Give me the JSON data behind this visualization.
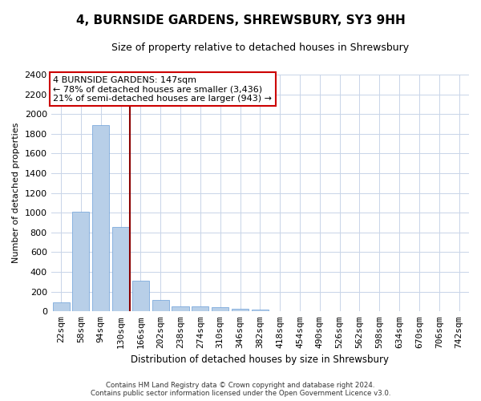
{
  "title": "4, BURNSIDE GARDENS, SHREWSBURY, SY3 9HH",
  "subtitle": "Size of property relative to detached houses in Shrewsbury",
  "xlabel": "Distribution of detached houses by size in Shrewsbury",
  "ylabel": "Number of detached properties",
  "footer_line1": "Contains HM Land Registry data © Crown copyright and database right 2024.",
  "footer_line2": "Contains public sector information licensed under the Open Government Licence v3.0.",
  "annotation_line1": "4 BURNSIDE GARDENS: 147sqm",
  "annotation_line2": "← 78% of detached houses are smaller (3,436)",
  "annotation_line3": "21% of semi-detached houses are larger (943) →",
  "property_size": 147,
  "bar_color": "#b8cfe8",
  "bar_edge_color": "#6a9fd8",
  "vline_color": "#8b0000",
  "categories": [
    "22sqm",
    "58sqm",
    "94sqm",
    "130sqm",
    "166sqm",
    "202sqm",
    "238sqm",
    "274sqm",
    "310sqm",
    "346sqm",
    "382sqm",
    "418sqm",
    "454sqm",
    "490sqm",
    "526sqm",
    "562sqm",
    "598sqm",
    "634sqm",
    "670sqm",
    "706sqm",
    "742sqm"
  ],
  "bar_heights": [
    90,
    1010,
    1890,
    860,
    310,
    115,
    55,
    50,
    40,
    25,
    20,
    0,
    0,
    0,
    0,
    0,
    0,
    0,
    0,
    0,
    0
  ],
  "ylim": [
    0,
    2400
  ],
  "yticks": [
    0,
    200,
    400,
    600,
    800,
    1000,
    1200,
    1400,
    1600,
    1800,
    2000,
    2200,
    2400
  ],
  "grid_color": "#c8d4e8",
  "bg_color": "#ffffff",
  "plot_bg_color": "#ffffff",
  "title_fontsize": 11,
  "subtitle_fontsize": 9
}
